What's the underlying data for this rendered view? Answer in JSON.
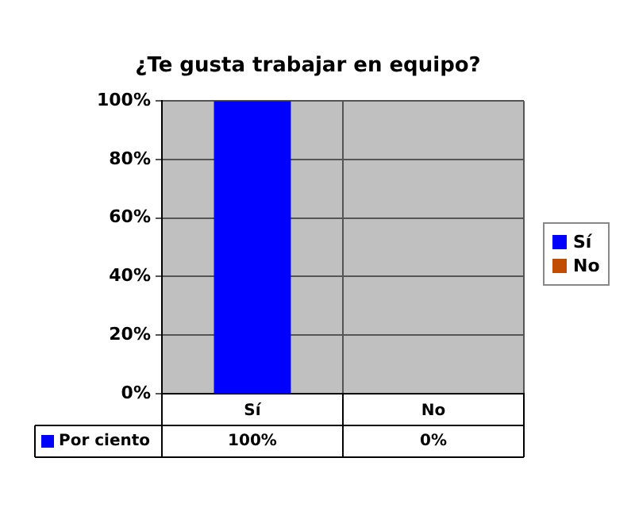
{
  "chart_data": {
    "type": "bar",
    "title": "¿Te gusta trabajar en equipo?",
    "categories": [
      "Sí",
      "No"
    ],
    "colors": [
      "#0000ff",
      "#c04c00"
    ],
    "series": [
      {
        "name": "Por ciento",
        "color": "#0000ff",
        "values": [
          100,
          0
        ],
        "value_labels": [
          "100%",
          "0%"
        ]
      }
    ],
    "ylim": [
      0,
      100
    ],
    "yticks": [
      {
        "value": 0,
        "label": "0%"
      },
      {
        "value": 20,
        "label": "20%"
      },
      {
        "value": 40,
        "label": "40%"
      },
      {
        "value": 60,
        "label": "60%"
      },
      {
        "value": 80,
        "label": "80%"
      },
      {
        "value": 100,
        "label": "100%"
      }
    ],
    "grid": true,
    "legend": "bottom left"
  }
}
